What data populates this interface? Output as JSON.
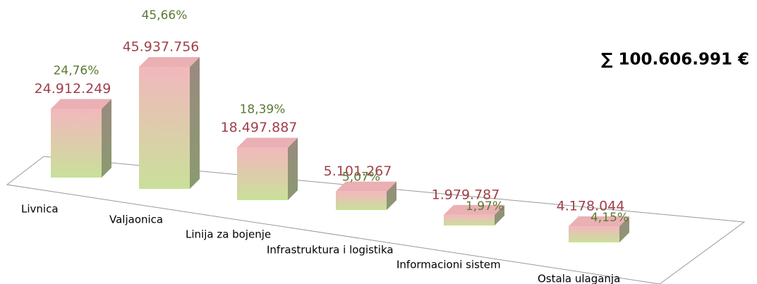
{
  "chart_data": {
    "type": "bar3d",
    "total_label": "∑ 100.606.991 €",
    "categories": [
      "Livnica",
      "Valjaonica",
      "Linija za bojenje",
      "Infrastruktura i logistika",
      "Informacioni sistem",
      "Ostala ulaganja"
    ],
    "values": [
      24912249,
      45937756,
      18497887,
      5101267,
      1979787,
      4178044
    ],
    "value_labels": [
      "24.912.249",
      "45.937.756",
      "18.497.887",
      "5.101.267",
      "1.979.787",
      "4.178.044"
    ],
    "percent_values": [
      24.76,
      45.66,
      18.39,
      5.07,
      1.97,
      4.15
    ],
    "percent_labels": [
      "24,76%",
      "45,66%",
      "18,39%",
      "5,07%",
      "1,97%",
      "4,15%"
    ],
    "value_label_color": "#a0404a",
    "percent_label_color": "#5a7a30"
  }
}
